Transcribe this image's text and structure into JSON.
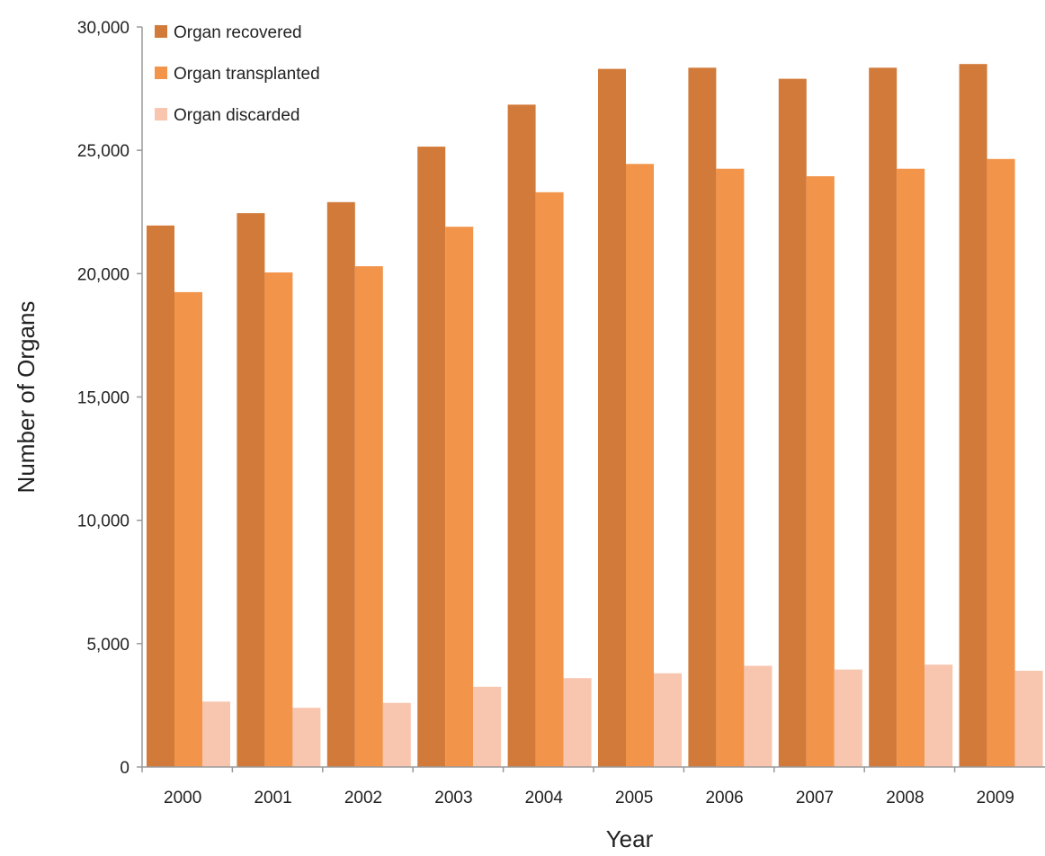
{
  "chart_data": {
    "type": "bar",
    "title": "",
    "xlabel": "Year",
    "ylabel": "Number of Organs",
    "categories": [
      "2000",
      "2001",
      "2002",
      "2003",
      "2004",
      "2005",
      "2006",
      "2007",
      "2008",
      "2009"
    ],
    "series": [
      {
        "name": "Organ recovered",
        "color": "#d27a3a",
        "values": [
          21950,
          22450,
          22900,
          25150,
          26850,
          28300,
          28350,
          27900,
          28350,
          28500
        ]
      },
      {
        "name": "Organ transplanted",
        "color": "#f2944a",
        "values": [
          19250,
          20050,
          20300,
          21900,
          23300,
          24450,
          24250,
          23950,
          24250,
          24650
        ]
      },
      {
        "name": "Organ discarded",
        "color": "#f8c5ae",
        "values": [
          2650,
          2400,
          2600,
          3250,
          3600,
          3800,
          4100,
          3950,
          4150,
          3900
        ]
      }
    ],
    "ylim": [
      0,
      30000
    ],
    "yticks": [
      {
        "value": 0,
        "label": "0"
      },
      {
        "value": 5000,
        "label": "5,000"
      },
      {
        "value": 10000,
        "label": "10,000"
      },
      {
        "value": 15000,
        "label": "15,000"
      },
      {
        "value": 20000,
        "label": "20,000"
      },
      {
        "value": 25000,
        "label": "25,000"
      },
      {
        "value": 30000,
        "label": "30,000"
      }
    ],
    "grid": false,
    "legend_position": "top-left"
  }
}
